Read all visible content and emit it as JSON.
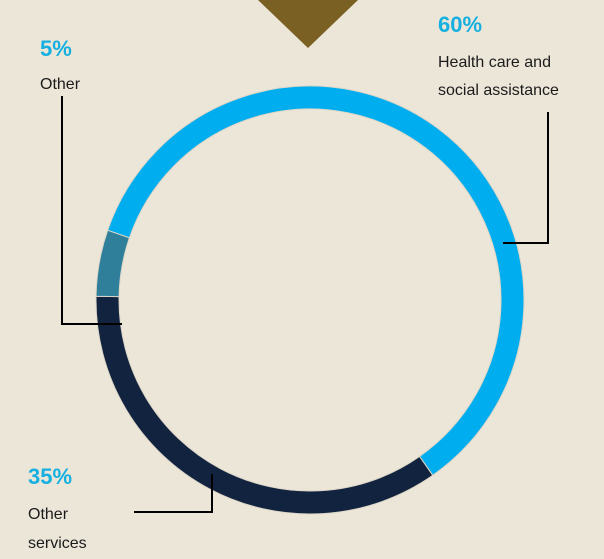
{
  "chart_data": {
    "type": "pie",
    "style": "donut",
    "start_angle_deg": 199,
    "slices": [
      {
        "pct_label": "60%",
        "label_lines": [
          "Health care and",
          "social assistance"
        ],
        "value": 60,
        "color": "#00adee"
      },
      {
        "pct_label": "35%",
        "label_lines": [
          "Other",
          "services"
        ],
        "value": 35,
        "color": "#12233f"
      },
      {
        "pct_label": "5%",
        "label_lines": [
          "Other"
        ],
        "value": 5,
        "color": "#2f7f9b"
      }
    ],
    "colors": {
      "background": "#ece6d9",
      "pointer": "#7a6022",
      "percent_text": "#16b0e0",
      "leader_line": "#000000"
    }
  }
}
